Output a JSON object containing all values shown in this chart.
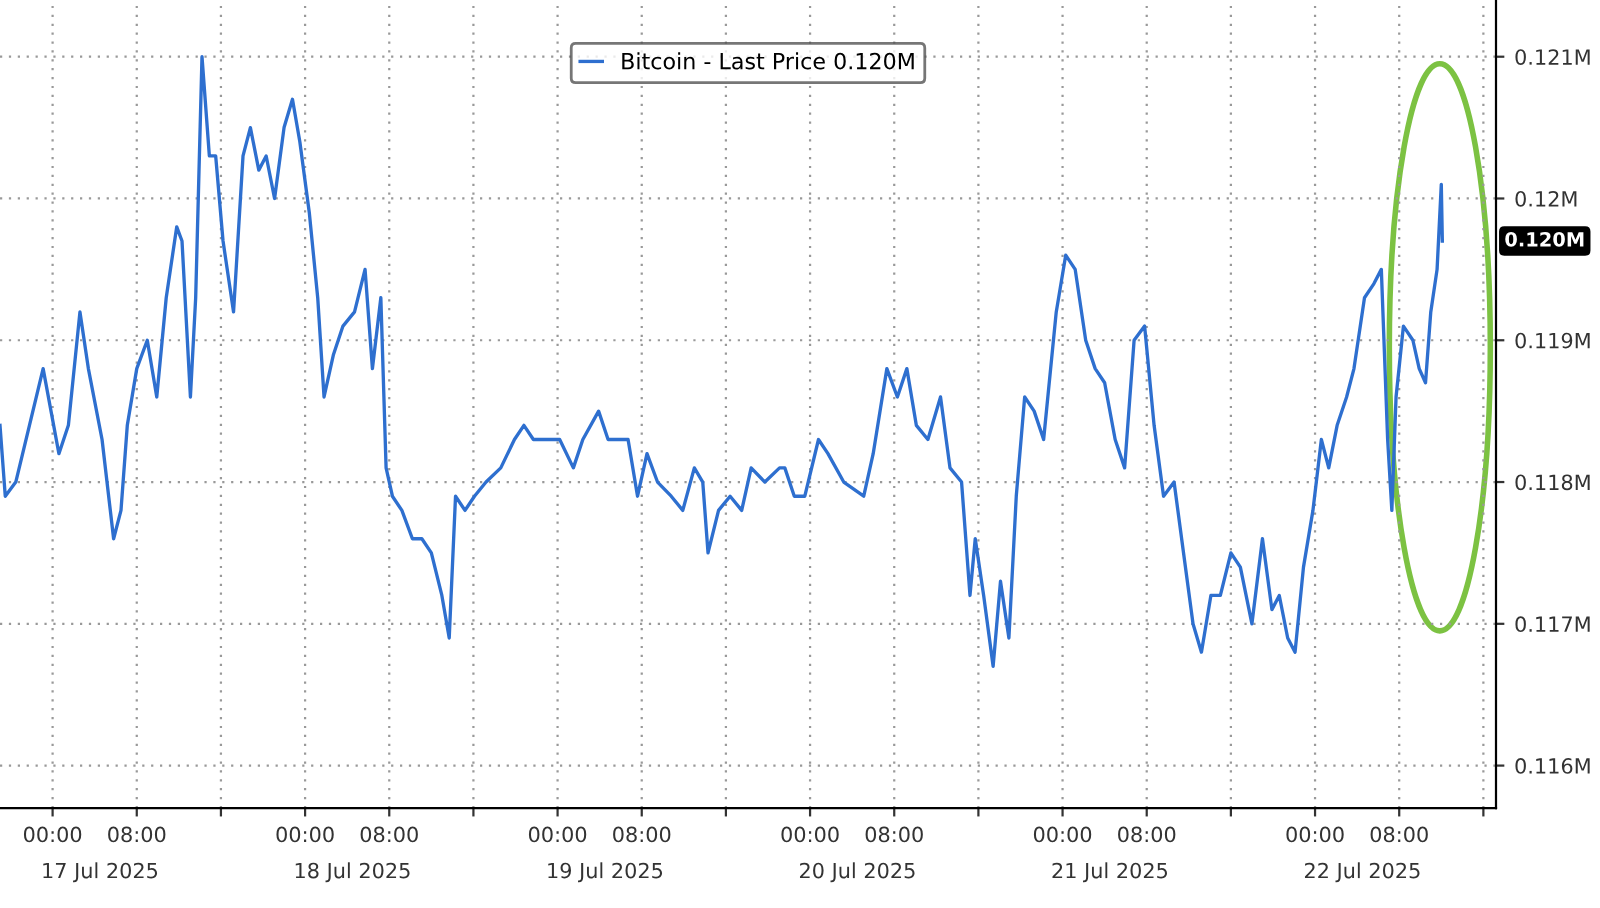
{
  "chart_data": {
    "type": "line",
    "x": [
      "2025-07-16T19:00",
      "2025-07-16T19:30",
      "2025-07-16T20:30",
      "2025-07-16T21:48",
      "2025-07-16T23:06",
      "2025-07-17T00:36",
      "2025-07-17T01:30",
      "2025-07-17T02:36",
      "2025-07-17T03:24",
      "2025-07-17T04:42",
      "2025-07-17T05:48",
      "2025-07-17T06:30",
      "2025-07-17T07:06",
      "2025-07-17T08:00",
      "2025-07-17T09:00",
      "2025-07-17T09:54",
      "2025-07-17T10:48",
      "2025-07-17T11:48",
      "2025-07-17T12:18",
      "2025-07-17T13:06",
      "2025-07-17T13:36",
      "2025-07-17T14:12",
      "2025-07-17T14:54",
      "2025-07-17T15:30",
      "2025-07-17T16:12",
      "2025-07-17T17:12",
      "2025-07-17T18:06",
      "2025-07-17T18:48",
      "2025-07-17T19:36",
      "2025-07-17T20:18",
      "2025-07-17T21:06",
      "2025-07-17T22:00",
      "2025-07-17T22:48",
      "2025-07-17T23:30",
      "2025-07-18T00:24",
      "2025-07-18T01:12",
      "2025-07-18T01:48",
      "2025-07-18T02:42",
      "2025-07-18T03:36",
      "2025-07-18T04:42",
      "2025-07-18T05:42",
      "2025-07-18T06:24",
      "2025-07-18T07:12",
      "2025-07-18T07:42",
      "2025-07-18T08:18",
      "2025-07-18T09:12",
      "2025-07-18T10:12",
      "2025-07-18T11:06",
      "2025-07-18T12:00",
      "2025-07-18T13:00",
      "2025-07-18T13:42",
      "2025-07-18T14:18",
      "2025-07-18T15:12",
      "2025-07-18T16:06",
      "2025-07-18T17:12",
      "2025-07-18T18:36",
      "2025-07-18T19:54",
      "2025-07-18T20:48",
      "2025-07-18T21:42",
      "2025-07-18T22:48",
      "2025-07-19T00:12",
      "2025-07-19T01:30",
      "2025-07-19T02:24",
      "2025-07-19T03:54",
      "2025-07-19T04:48",
      "2025-07-19T05:42",
      "2025-07-19T06:42",
      "2025-07-19T07:36",
      "2025-07-19T08:30",
      "2025-07-19T09:30",
      "2025-07-19T10:48",
      "2025-07-19T11:54",
      "2025-07-19T13:00",
      "2025-07-19T13:48",
      "2025-07-19T14:18",
      "2025-07-19T15:18",
      "2025-07-19T16:24",
      "2025-07-19T17:30",
      "2025-07-19T18:24",
      "2025-07-19T19:42",
      "2025-07-19T21:06",
      "2025-07-19T21:36",
      "2025-07-19T22:30",
      "2025-07-19T23:30",
      "2025-07-20T00:48",
      "2025-07-20T01:42",
      "2025-07-20T03:12",
      "2025-07-20T05:06",
      "2025-07-20T06:00",
      "2025-07-20T07:18",
      "2025-07-20T08:18",
      "2025-07-20T09:12",
      "2025-07-20T10:06",
      "2025-07-20T11:12",
      "2025-07-20T12:24",
      "2025-07-20T13:18",
      "2025-07-20T14:24",
      "2025-07-20T15:12",
      "2025-07-20T15:42",
      "2025-07-20T16:30",
      "2025-07-20T17:24",
      "2025-07-20T18:06",
      "2025-07-20T18:54",
      "2025-07-20T19:36",
      "2025-07-20T20:24",
      "2025-07-20T21:18",
      "2025-07-20T22:12",
      "2025-07-20T23:24",
      "2025-07-21T00:18",
      "2025-07-21T01:12",
      "2025-07-21T02:12",
      "2025-07-21T03:06",
      "2025-07-21T04:00",
      "2025-07-21T05:00",
      "2025-07-21T05:54",
      "2025-07-21T06:48",
      "2025-07-21T07:48",
      "2025-07-21T08:42",
      "2025-07-21T09:36",
      "2025-07-21T10:36",
      "2025-07-21T11:30",
      "2025-07-21T12:24",
      "2025-07-21T13:12",
      "2025-07-21T14:06",
      "2025-07-21T15:00",
      "2025-07-21T16:00",
      "2025-07-21T16:54",
      "2025-07-21T18:00",
      "2025-07-21T19:00",
      "2025-07-21T19:54",
      "2025-07-21T20:36",
      "2025-07-21T21:24",
      "2025-07-21T22:06",
      "2025-07-21T22:54",
      "2025-07-21T23:48",
      "2025-07-22T00:36",
      "2025-07-22T01:18",
      "2025-07-22T02:06",
      "2025-07-22T03:00",
      "2025-07-22T03:42",
      "2025-07-22T04:42",
      "2025-07-22T05:36",
      "2025-07-22T06:18",
      "2025-07-22T06:54",
      "2025-07-22T07:18",
      "2025-07-22T07:42",
      "2025-07-22T08:24",
      "2025-07-22T09:18",
      "2025-07-22T09:54",
      "2025-07-22T10:30",
      "2025-07-22T11:00",
      "2025-07-22T11:36",
      "2025-07-22T12:00",
      "2025-07-22T12:06"
    ],
    "series": [
      {
        "name": "Bitcoin - Last Price 0.120M",
        "color": "#2e6fcf",
        "values": [
          0.1184,
          0.1179,
          0.118,
          0.1184,
          0.1188,
          0.1182,
          0.1184,
          0.1192,
          0.1188,
          0.1183,
          0.1176,
          0.1178,
          0.1184,
          0.1188,
          0.119,
          0.1186,
          0.1193,
          0.1198,
          0.1197,
          0.1186,
          0.1193,
          0.121,
          0.1203,
          0.1203,
          0.1197,
          0.1192,
          0.1203,
          0.1205,
          0.1202,
          0.1203,
          0.12,
          0.1205,
          0.1207,
          0.1204,
          0.1199,
          0.1193,
          0.1186,
          0.1189,
          0.1191,
          0.1192,
          0.1195,
          0.1188,
          0.1193,
          0.1181,
          0.1179,
          0.1178,
          0.1176,
          0.1176,
          0.1175,
          0.1172,
          0.1169,
          0.1179,
          0.1178,
          0.1179,
          0.118,
          0.1181,
          0.1183,
          0.1184,
          0.1183,
          0.1183,
          0.1183,
          0.1181,
          0.1183,
          0.1185,
          0.1183,
          0.1183,
          0.1183,
          0.1179,
          0.1182,
          0.118,
          0.1179,
          0.1178,
          0.1181,
          0.118,
          0.1175,
          0.1178,
          0.1179,
          0.1178,
          0.1181,
          0.118,
          0.1181,
          0.1181,
          0.1179,
          0.1179,
          0.1183,
          0.1182,
          0.118,
          0.1179,
          0.1182,
          0.1188,
          0.1186,
          0.1188,
          0.1184,
          0.1183,
          0.1186,
          0.1181,
          0.118,
          0.1172,
          0.1176,
          0.1172,
          0.1167,
          0.1173,
          0.1169,
          0.1179,
          0.1186,
          0.1185,
          0.1183,
          0.1192,
          0.1196,
          0.1195,
          0.119,
          0.1188,
          0.1187,
          0.1183,
          0.1181,
          0.119,
          0.1191,
          0.1184,
          0.1179,
          0.118,
          0.1175,
          0.117,
          0.1168,
          0.1172,
          0.1172,
          0.1175,
          0.1174,
          0.117,
          0.1176,
          0.1171,
          0.1172,
          0.1169,
          0.1168,
          0.1174,
          0.1178,
          0.1183,
          0.1181,
          0.1184,
          0.1186,
          0.1188,
          0.1193,
          0.1194,
          0.1195,
          0.1183,
          0.1178,
          0.1186,
          0.1191,
          0.119,
          0.1188,
          0.1187,
          0.1192,
          0.1195,
          0.1201,
          0.1197
        ]
      }
    ],
    "xlim": [
      "2025-07-16T19:00",
      "2025-07-22T17:12"
    ],
    "xticks": [
      {
        "value": "2025-07-17T00:00",
        "label": "00:00"
      },
      {
        "value": "2025-07-17T08:00",
        "label": "08:00"
      },
      {
        "value": "2025-07-17T16:00",
        "label": null
      },
      {
        "value": "2025-07-18T00:00",
        "label": "00:00"
      },
      {
        "value": "2025-07-18T08:00",
        "label": "08:00"
      },
      {
        "value": "2025-07-18T16:00",
        "label": null
      },
      {
        "value": "2025-07-19T00:00",
        "label": "00:00"
      },
      {
        "value": "2025-07-19T08:00",
        "label": "08:00"
      },
      {
        "value": "2025-07-19T16:00",
        "label": null
      },
      {
        "value": "2025-07-20T00:00",
        "label": "00:00"
      },
      {
        "value": "2025-07-20T08:00",
        "label": "08:00"
      },
      {
        "value": "2025-07-20T16:00",
        "label": null
      },
      {
        "value": "2025-07-21T00:00",
        "label": "00:00"
      },
      {
        "value": "2025-07-21T08:00",
        "label": "08:00"
      },
      {
        "value": "2025-07-21T16:00",
        "label": null
      },
      {
        "value": "2025-07-22T00:00",
        "label": "00:00"
      },
      {
        "value": "2025-07-22T08:00",
        "label": "08:00"
      },
      {
        "value": "2025-07-22T16:00",
        "label": null
      }
    ],
    "x2lim": [
      "2025-07-16T19:00",
      "2025-07-22T17:12"
    ],
    "x2ticks": [
      {
        "value": "2025-07-17T04:30",
        "label": "17 Jul 2025"
      },
      {
        "value": "2025-07-18T04:30",
        "label": "18 Jul 2025"
      },
      {
        "value": "2025-07-19T04:30",
        "label": "19 Jul 2025"
      },
      {
        "value": "2025-07-20T04:30",
        "label": "20 Jul 2025"
      },
      {
        "value": "2025-07-21T04:30",
        "label": "21 Jul 2025"
      },
      {
        "value": "2025-07-22T04:30",
        "label": "22 Jul 2025"
      }
    ],
    "ylim": [
      0.1157,
      0.1214
    ],
    "yticks": [
      {
        "value": 0.116,
        "label": "0.116M"
      },
      {
        "value": 0.117,
        "label": "0.117M"
      },
      {
        "value": 0.118,
        "label": "0.118M"
      },
      {
        "value": 0.119,
        "label": "0.119M"
      },
      {
        "value": 0.12,
        "label": "0.12M"
      },
      {
        "value": 0.121,
        "label": "0.121M"
      }
    ],
    "annotations": [
      "0.120M"
    ],
    "grid": true,
    "legend": "top",
    "marker": "none",
    "line_style": "solid"
  }
}
